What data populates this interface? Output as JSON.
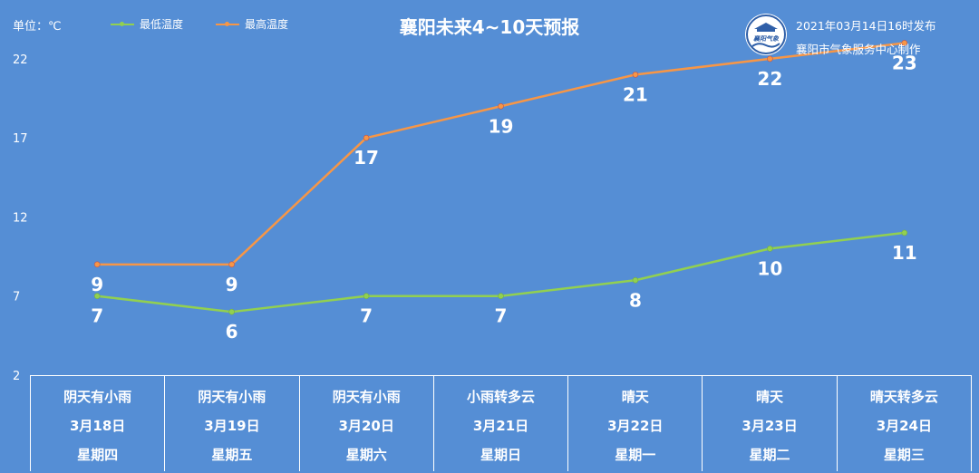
{
  "header": {
    "unit_label": "单位：℃",
    "title": "襄阳未来4~10天预报",
    "publish_time": "2021年03月14日16时发布",
    "publisher": "襄阳市气象服务中心制作"
  },
  "logo": {
    "text": "襄阳气象"
  },
  "colors": {
    "background": "#558ed5",
    "low_line": "#92d050",
    "high_line": "#f79646",
    "text": "#ffffff"
  },
  "chart_data": {
    "type": "line",
    "title": "襄阳未来4~10天预报",
    "ylabel": "单位：℃",
    "ylim": [
      2,
      24
    ],
    "yticks": [
      2,
      7,
      12,
      17,
      22
    ],
    "grid": false,
    "legend_position": "top-left",
    "categories": [
      "3月18日",
      "3月19日",
      "3月20日",
      "3月21日",
      "3月22日",
      "3月23日",
      "3月24日"
    ],
    "series": [
      {
        "name": "最低温度",
        "color": "#92d050",
        "values": [
          7,
          6,
          7,
          7,
          8,
          10,
          11
        ]
      },
      {
        "name": "最高温度",
        "color": "#f79646",
        "values": [
          9,
          9,
          17,
          19,
          21,
          22,
          23
        ]
      }
    ]
  },
  "forecast": [
    {
      "weather": "阴天有小雨",
      "date": "3月18日",
      "weekday": "星期四"
    },
    {
      "weather": "阴天有小雨",
      "date": "3月19日",
      "weekday": "星期五"
    },
    {
      "weather": "阴天有小雨",
      "date": "3月20日",
      "weekday": "星期六"
    },
    {
      "weather": "小雨转多云",
      "date": "3月21日",
      "weekday": "星期日"
    },
    {
      "weather": "晴天",
      "date": "3月22日",
      "weekday": "星期一"
    },
    {
      "weather": "晴天",
      "date": "3月23日",
      "weekday": "星期二"
    },
    {
      "weather": "晴天转多云",
      "date": "3月24日",
      "weekday": "星期三"
    }
  ]
}
